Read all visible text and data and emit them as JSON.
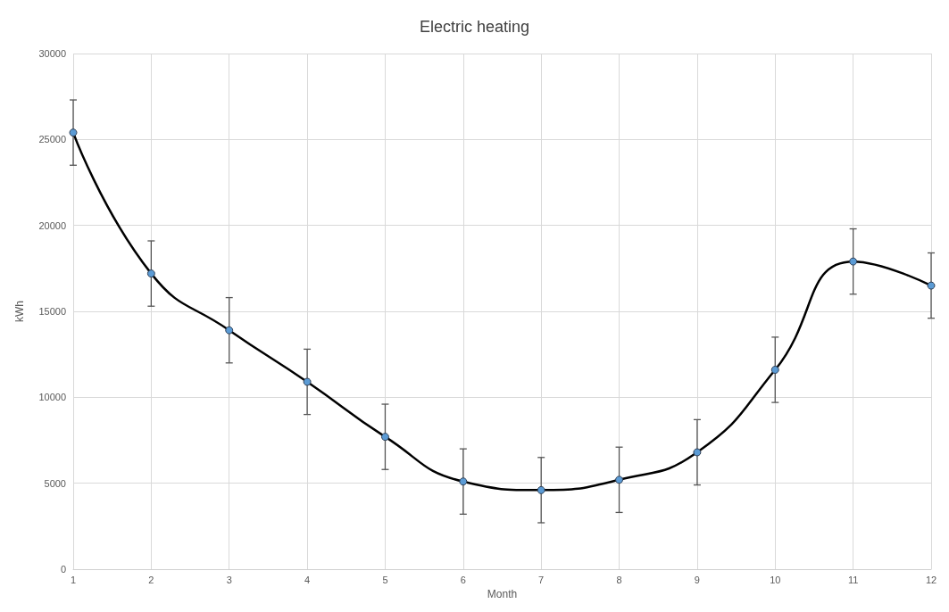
{
  "chart_data": {
    "type": "line",
    "title": "Electric heating",
    "xlabel": "Month",
    "ylabel": "kWh",
    "x": [
      1,
      2,
      3,
      4,
      5,
      6,
      7,
      8,
      9,
      10,
      11,
      12
    ],
    "series": [
      {
        "color": "#000000",
        "values": [
          25400,
          17200,
          13900,
          10900,
          7700,
          5100,
          4600,
          5200,
          6800,
          11600,
          17900,
          16500
        ],
        "errors": [
          1900,
          1900,
          1900,
          1900,
          1900,
          1900,
          1900,
          1900,
          1900,
          1900,
          1900,
          1900
        ]
      }
    ],
    "xlim": [
      1,
      12
    ],
    "xticks": [
      1,
      2,
      3,
      4,
      5,
      6,
      7,
      8,
      9,
      10,
      11,
      12
    ],
    "ylim": [
      0,
      30000
    ],
    "yticks": [
      0,
      5000,
      10000,
      15000,
      20000,
      25000,
      30000
    ],
    "grid": true,
    "marker": "circle",
    "line_style": "solid"
  }
}
